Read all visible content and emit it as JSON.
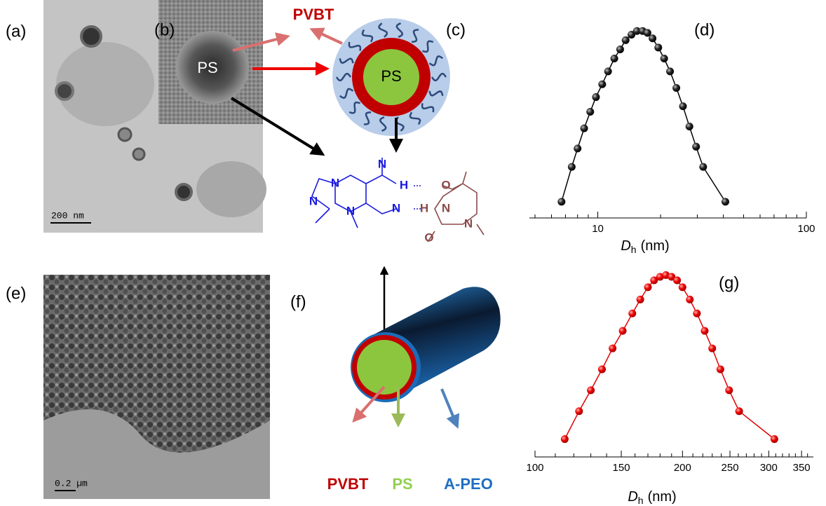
{
  "panels": {
    "a": "(a)",
    "b": "(b)",
    "c": "(c)",
    "e": "(e)",
    "f": "(f)"
  },
  "tem": {
    "core_label": "PS",
    "scale_a": "200 nm",
    "scale_e": "0.2 µm"
  },
  "schematic": {
    "pvbt_top": "PVBT",
    "core_c": "PS",
    "f_labels": [
      {
        "text": "PVBT",
        "color": "#c00000"
      },
      {
        "text": "PS",
        "color": "#92d050"
      },
      {
        "text": "A-PEO",
        "color": "#1f6fc0"
      }
    ]
  },
  "chemistry": {
    "atoms": [
      {
        "label": "N",
        "color": "#1a1ae0"
      },
      {
        "label": "N",
        "color": "#1a1ae0"
      },
      {
        "label": "H",
        "color": "#1a1ae0"
      },
      {
        "label": "N",
        "color": "#1a1ae0"
      },
      {
        "label": "N",
        "color": "#1a1ae0"
      },
      {
        "label": "N",
        "color": "#1a1ae0"
      },
      {
        "label": "H",
        "color": "#8b4a4a"
      },
      {
        "label": "O",
        "color": "#8b4a4a"
      },
      {
        "label": "N",
        "color": "#8b4a4a"
      },
      {
        "label": "O",
        "color": "#8b4a4a"
      },
      {
        "label": "N",
        "color": "#8b4a4a"
      }
    ]
  },
  "chart_data": [
    {
      "type": "line",
      "title": "(d)",
      "x_label": {
        "symbol": "D",
        "subscript": "h",
        "unit": "(nm)"
      },
      "log_x": true,
      "color": "#000000",
      "x": [
        6.7,
        7.5,
        8.0,
        8.6,
        9.2,
        9.8,
        10.5,
        11.2,
        12.0,
        12.8,
        13.6,
        14.5,
        15.4,
        16.4,
        17.3,
        18.3,
        19.5,
        20.8,
        22.2,
        23.8,
        25.6,
        27.5,
        29.6,
        32.0,
        40.9
      ],
      "values": [
        0.05,
        0.24,
        0.34,
        0.45,
        0.54,
        0.62,
        0.69,
        0.76,
        0.83,
        0.88,
        0.93,
        0.96,
        0.98,
        0.98,
        0.97,
        0.94,
        0.89,
        0.83,
        0.76,
        0.67,
        0.57,
        0.46,
        0.35,
        0.24,
        0.05
      ],
      "xlim": [
        4.7,
        100
      ],
      "xticks": [
        10,
        100
      ],
      "xminor": [
        5,
        6,
        7,
        8,
        9,
        20,
        30,
        40,
        50,
        60,
        70,
        80,
        90
      ],
      "ylim": [
        0,
        1
      ]
    },
    {
      "type": "line",
      "title": "(g)",
      "x_label": {
        "symbol": "D",
        "subscript": "h",
        "unit": "(nm)"
      },
      "log_x": true,
      "color": "#e00000",
      "x": [
        115,
        123,
        130,
        137,
        144,
        151,
        158,
        164,
        170,
        175,
        180,
        185,
        190,
        195,
        200,
        207,
        214,
        222,
        230,
        239,
        249,
        261,
        308
      ],
      "values": [
        0.05,
        0.21,
        0.33,
        0.45,
        0.57,
        0.67,
        0.77,
        0.85,
        0.92,
        0.96,
        0.98,
        0.99,
        0.98,
        0.96,
        0.92,
        0.85,
        0.77,
        0.67,
        0.57,
        0.45,
        0.33,
        0.21,
        0.05
      ],
      "xlim": [
        100,
        370
      ],
      "xticks": [
        100,
        150,
        200,
        250,
        300,
        350
      ],
      "xminor": [
        110,
        120,
        130,
        140,
        160,
        170,
        180,
        190,
        210,
        220,
        230,
        240,
        260,
        270,
        280,
        290,
        310,
        320,
        330,
        340,
        360
      ],
      "ylim": [
        0,
        1
      ]
    }
  ]
}
